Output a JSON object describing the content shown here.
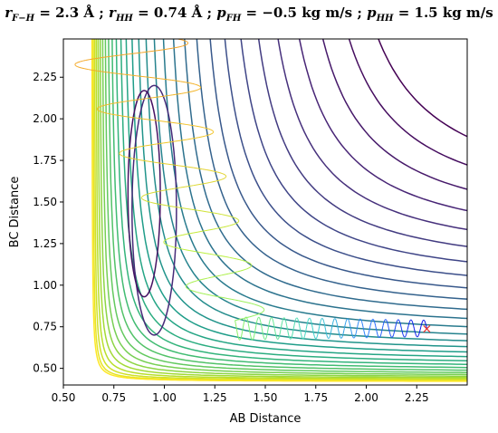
{
  "chart_data": {
    "type": "contour",
    "title": "r_{F−H} = 2.3 Å ; r_{HH} = 0.74 Å ; p_{FH} = −0.5 kg m/s ; p_{HH} = 1.5 kg m/s",
    "title_parts": [
      {
        "text": "r",
        "italic": true
      },
      {
        "text": "F−H",
        "italic": true,
        "sub": true
      },
      {
        "text": " = 2.3 Å ; "
      },
      {
        "text": "r",
        "italic": true
      },
      {
        "text": "HH",
        "italic": true,
        "sub": true
      },
      {
        "text": " = 0.74 Å ; "
      },
      {
        "text": "p",
        "italic": true
      },
      {
        "text": "FH",
        "italic": true,
        "sub": true
      },
      {
        "text": " = −0.5 kg m/s ; "
      },
      {
        "text": "p",
        "italic": true
      },
      {
        "text": "HH",
        "italic": true,
        "sub": true
      },
      {
        "text": " = 1.5 kg m/s"
      }
    ],
    "xlabel": "AB Distance",
    "ylabel": "BC Distance",
    "xlim": [
      0.5,
      2.5
    ],
    "ylim": [
      0.4,
      2.48
    ],
    "xticks": [
      "0.50",
      "0.75",
      "1.00",
      "1.25",
      "1.50",
      "1.75",
      "2.00",
      "2.25"
    ],
    "yticks": [
      "0.50",
      "0.75",
      "1.00",
      "1.25",
      "1.50",
      "1.75",
      "2.00",
      "2.25"
    ],
    "grid": false,
    "colormap": "viridis",
    "contour_levels": 30,
    "trajectory": {
      "start": {
        "x": 2.3,
        "y": 0.74
      },
      "colormap": "blue → green → yellow → orange"
    },
    "marker": {
      "x": 2.3,
      "y": 0.74,
      "symbol": "×",
      "color": "#e8312b"
    }
  }
}
